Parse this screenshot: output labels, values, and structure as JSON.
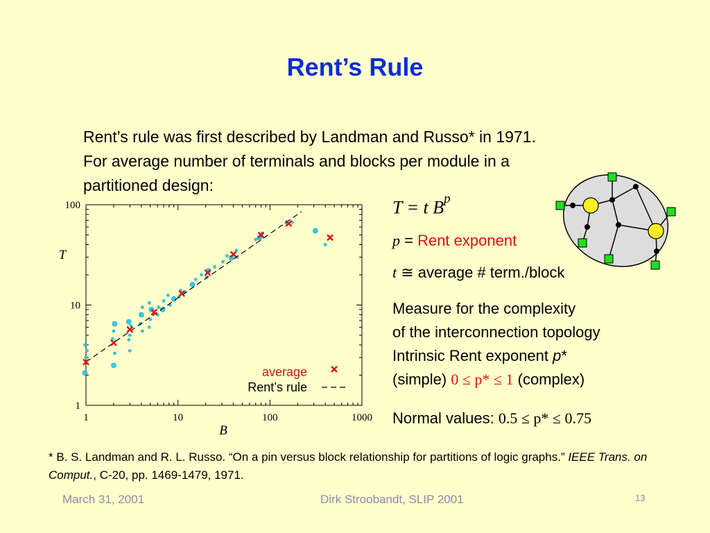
{
  "title": "Rent’s Rule",
  "intro": [
    "Rent’s rule was first described by Landman and Russo* in 1971.",
    "For average number of terminals and blocks per module in a",
    "partitioned design:"
  ],
  "formula": {
    "lhs": "T = t B",
    "exp": "p"
  },
  "p_line": {
    "var": "p",
    "eq": " = ",
    "text": "Rent exponent"
  },
  "t_line": {
    "var": "t",
    "sym": " ≅ ",
    "text": "average # term./block"
  },
  "measure": {
    "line1": "Measure for the complexity",
    "line2": "of the interconnection topology",
    "line3_text": "Intrinsic Rent exponent ",
    "line3_var": "p",
    "line3_star": "*",
    "line4_left": "(simple) ",
    "line4_range": "0 ≤ p* ≤ 1",
    "line4_right": " (complex)"
  },
  "normal": {
    "label": "Normal values: ",
    "range": "0.5 ≤ p* ≤ 0.75"
  },
  "footnote": {
    "part1": "* B. S. Landman and R. L. Russo. “On a pin versus block relationship for partitions of logic graphs.” ",
    "journal": "IEEE Trans. on Comput.",
    "part2": ", C-20, pp. 1469-1479, 1971."
  },
  "footer": {
    "date": "March 31, 2001",
    "author": "Dirk Stroobandt, SLIP 2001",
    "page": "13"
  },
  "colors": {
    "title": "#0b2bdc",
    "red": "#dd1111",
    "cyan": "#33ccee",
    "node_yellow": "#ffee22",
    "node_green": "#22dd22",
    "ellipse": "#dddddd"
  },
  "chart_data": {
    "type": "scatter",
    "xscale": "log",
    "yscale": "log",
    "xlim": [
      1,
      1000
    ],
    "ylim": [
      1,
      100
    ],
    "xlabel": "B",
    "ylabel": "T",
    "x_ticks": [
      "1",
      "10",
      "100",
      "1000"
    ],
    "y_ticks": [
      "1",
      "10",
      "100"
    ],
    "legend": [
      {
        "label": "average",
        "marker": "x",
        "color": "#dd1111"
      },
      {
        "label": "Rent’s rule",
        "marker": "dashed-line",
        "color": "#000000"
      }
    ],
    "legend_position": "bottom-right",
    "series": [
      {
        "name": "average",
        "marker": "x",
        "points": [
          [
            1,
            2.7
          ],
          [
            2,
            4.2
          ],
          [
            3,
            5.7
          ],
          [
            5.5,
            8.5
          ],
          [
            11,
            13
          ],
          [
            21,
            21
          ],
          [
            40,
            32
          ],
          [
            80,
            50
          ],
          [
            160,
            65
          ],
          [
            450,
            47
          ]
        ]
      },
      {
        "name": "Rent’s rule",
        "style": "dashed",
        "t": 2.7,
        "p": 0.64,
        "x_range": [
          1,
          220
        ]
      },
      {
        "marker": "dot",
        "points": [
          [
            1,
            2.1
          ],
          [
            1,
            3.0
          ],
          [
            1,
            3.5
          ],
          [
            1,
            4.0
          ],
          [
            2,
            2.5
          ],
          [
            2,
            3.3
          ],
          [
            2,
            4.6
          ],
          [
            2,
            5.5
          ],
          [
            2,
            6.5
          ],
          [
            3,
            4.5
          ],
          [
            3,
            5.0
          ],
          [
            3,
            6.2
          ],
          [
            3,
            6.8
          ],
          [
            3,
            3.5
          ],
          [
            4,
            5.5
          ],
          [
            4,
            6.5
          ],
          [
            4,
            8.0
          ],
          [
            4,
            9.5
          ],
          [
            5,
            6.0
          ],
          [
            5,
            7.2
          ],
          [
            5,
            9.0
          ],
          [
            5,
            10.5
          ],
          [
            6,
            8.0
          ],
          [
            6,
            9.5
          ],
          [
            7,
            9.0
          ],
          [
            7,
            11.0
          ],
          [
            8,
            10.0
          ],
          [
            8,
            12.5
          ],
          [
            9,
            11.5
          ],
          [
            10,
            12.0
          ],
          [
            11,
            14.0
          ],
          [
            12,
            13.5
          ],
          [
            14,
            16.0
          ],
          [
            16,
            18.0
          ],
          [
            18,
            20.0
          ],
          [
            20,
            19.0
          ],
          [
            22,
            22.0
          ],
          [
            25,
            24.0
          ],
          [
            30,
            27.0
          ],
          [
            35,
            31.0
          ],
          [
            38,
            29.5
          ],
          [
            42,
            35.0
          ],
          [
            45,
            30.0
          ],
          [
            70,
            45.0
          ],
          [
            75,
            47.0
          ],
          [
            85,
            52.0
          ],
          [
            150,
            66.0
          ],
          [
            170,
            67.0
          ],
          [
            320,
            55.0
          ],
          [
            400,
            40.0
          ]
        ]
      }
    ]
  }
}
